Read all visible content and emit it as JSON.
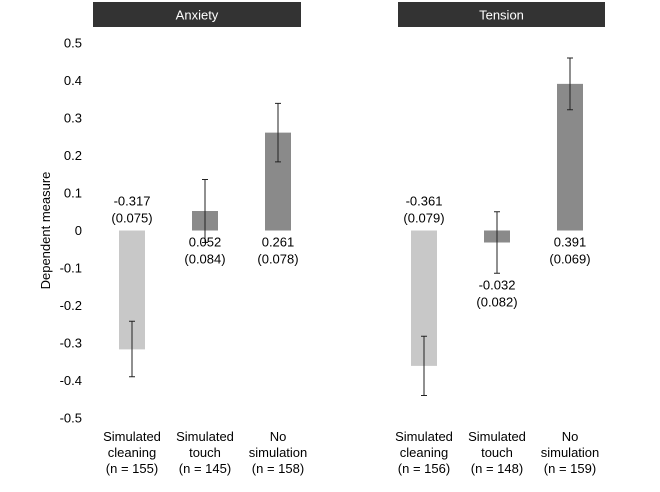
{
  "chart_data": {
    "type": "bar",
    "ylabel": "Dependent measure",
    "ylim": [
      -0.5,
      0.5
    ],
    "yticks": [
      "0.5",
      "0.4",
      "0.3",
      "0.2",
      "0.1",
      "0",
      "-0.1",
      "-0.2",
      "-0.3",
      "-0.4",
      "-0.5"
    ],
    "ytick_values": [
      0.5,
      0.4,
      0.3,
      0.2,
      0.1,
      0,
      -0.1,
      -0.2,
      -0.3,
      -0.4,
      -0.5
    ],
    "grid": false,
    "colors": {
      "Simulated cleaning": "#c8c8c8",
      "Simulated touch": "#8a8a8a",
      "No simulation": "#8a8a8a",
      "panel_header": "#333333"
    },
    "panels": [
      {
        "title": "Anxiety",
        "bars": [
          {
            "category": [
              "Simulated",
              "cleaning",
              "(n = 155)"
            ],
            "value": -0.317,
            "label": [
              "-0.317",
              "(0.075)"
            ],
            "err_low": -0.39,
            "err_high": -0.242,
            "color": "#c8c8c8"
          },
          {
            "category": [
              "Simulated",
              "touch",
              "(n = 145)"
            ],
            "value": 0.052,
            "label": [
              "0.052",
              "(0.084)"
            ],
            "err_low": -0.032,
            "err_high": 0.136,
            "color": "#8a8a8a"
          },
          {
            "category": [
              "No",
              "simulation",
              "(n = 158)"
            ],
            "value": 0.261,
            "label": [
              "0.261",
              "(0.078)"
            ],
            "err_low": 0.183,
            "err_high": 0.339,
            "color": "#8a8a8a"
          }
        ]
      },
      {
        "title": "Tension",
        "bars": [
          {
            "category": [
              "Simulated",
              "cleaning",
              "(n = 156)"
            ],
            "value": -0.361,
            "label": [
              "-0.361",
              "(0.079)"
            ],
            "err_low": -0.44,
            "err_high": -0.282,
            "color": "#c8c8c8"
          },
          {
            "category": [
              "Simulated",
              "touch",
              "(n = 148)"
            ],
            "value": -0.032,
            "label": [
              "-0.032",
              "(0.082)"
            ],
            "err_low": -0.114,
            "err_high": 0.05,
            "color": "#8a8a8a"
          },
          {
            "category": [
              "No",
              "simulation",
              "(n = 159)"
            ],
            "value": 0.391,
            "label": [
              "0.391",
              "(0.069)"
            ],
            "err_low": 0.322,
            "err_high": 0.46,
            "color": "#8a8a8a"
          }
        ]
      }
    ]
  }
}
